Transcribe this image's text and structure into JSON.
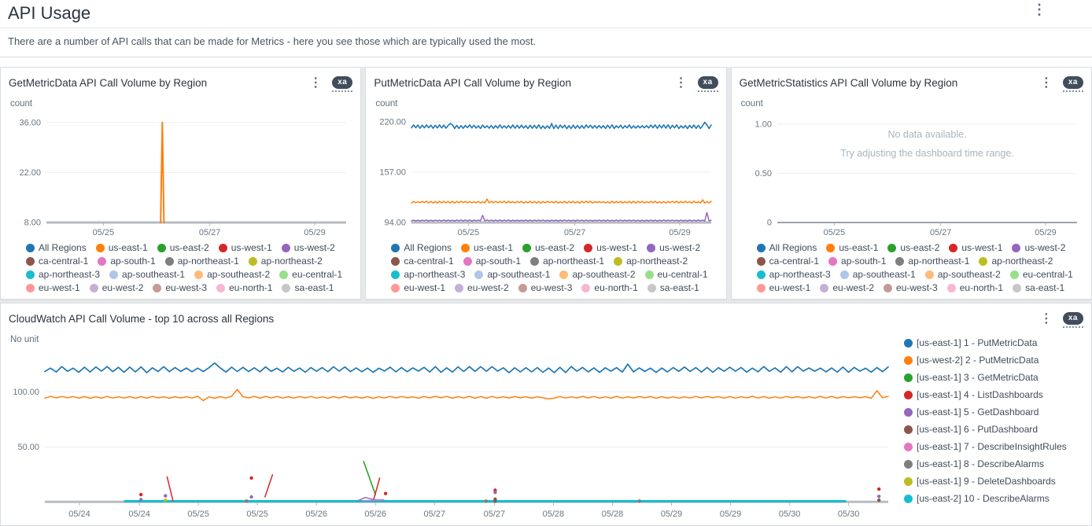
{
  "page": {
    "title": "API Usage",
    "description": "There are a number of API calls that can be made for Metrics - here you see those which are typically used the most."
  },
  "icons": {
    "kebab_menu": "⋮"
  },
  "badges": {
    "xa": "xa"
  },
  "region_legend": [
    {
      "label": "All Regions",
      "color": "#1f77b4"
    },
    {
      "label": "us-east-1",
      "color": "#ff7f0e"
    },
    {
      "label": "us-east-2",
      "color": "#2ca02c"
    },
    {
      "label": "us-west-1",
      "color": "#d62728"
    },
    {
      "label": "us-west-2",
      "color": "#9467bd"
    },
    {
      "label": "ca-central-1",
      "color": "#8c564b"
    },
    {
      "label": "ap-south-1",
      "color": "#e377c2"
    },
    {
      "label": "ap-northeast-1",
      "color": "#7f7f7f"
    },
    {
      "label": "ap-northeast-2",
      "color": "#bcbd22"
    },
    {
      "label": "ap-northeast-3",
      "color": "#17becf"
    },
    {
      "label": "ap-southeast-1",
      "color": "#aec7e8"
    },
    {
      "label": "ap-southeast-2",
      "color": "#ffbb78"
    },
    {
      "label": "eu-central-1",
      "color": "#98df8a"
    },
    {
      "label": "eu-west-1",
      "color": "#ff9896"
    },
    {
      "label": "eu-west-2",
      "color": "#c5b0d5"
    },
    {
      "label": "eu-west-3",
      "color": "#c49c94"
    },
    {
      "label": "eu-north-1",
      "color": "#f7b6d2"
    },
    {
      "label": "sa-east-1",
      "color": "#c7c7c7"
    }
  ],
  "top10_legend": [
    {
      "label": "[us-east-1] 1 - PutMetricData",
      "color": "#1f77b4"
    },
    {
      "label": "[us-west-2] 2 - PutMetricData",
      "color": "#ff7f0e"
    },
    {
      "label": "[us-east-1] 3 - GetMetricData",
      "color": "#2ca02c"
    },
    {
      "label": "[us-east-1] 4 - ListDashboards",
      "color": "#d62728"
    },
    {
      "label": "[us-east-1] 5 - GetDashboard",
      "color": "#9467bd"
    },
    {
      "label": "[us-east-1] 6 - PutDashboard",
      "color": "#8c564b"
    },
    {
      "label": "[us-east-1] 7 - DescribeInsightRules",
      "color": "#e377c2"
    },
    {
      "label": "[us-east-1] 8 - DescribeAlarms",
      "color": "#7f7f7f"
    },
    {
      "label": "[us-east-1] 9 - DeleteDashboards",
      "color": "#bcbd22"
    },
    {
      "label": "[us-east-2] 10 - DescribeAlarms",
      "color": "#17becf"
    }
  ],
  "chart_data": [
    {
      "type": "line",
      "title": "GetMetricData API Call Volume by Region",
      "unit": "count",
      "ylim": [
        8,
        37.5
      ],
      "yticks": [
        {
          "v": 36,
          "label": "36.00"
        },
        {
          "v": 22,
          "label": "22.00"
        },
        {
          "v": 8,
          "label": "8.00"
        }
      ],
      "xticks": [
        {
          "f": 0.19,
          "label": "05/25"
        },
        {
          "f": 0.545,
          "label": "05/27"
        },
        {
          "f": 0.895,
          "label": "05/29"
        }
      ],
      "baseline": {
        "v": 8,
        "width": 3,
        "color": "#b7bcc2"
      },
      "series": [
        {
          "name": "us-east-1",
          "color": "#ff7f0e",
          "width": 2,
          "points": [
            [
              0.381,
              8
            ],
            [
              0.3865,
              36
            ],
            [
              0.392,
              8
            ]
          ]
        }
      ],
      "legend_position": "bottom"
    },
    {
      "type": "line",
      "title": "PutMetricData API Call Volume by Region",
      "unit": "count",
      "ylim": [
        94,
        226
      ],
      "yticks": [
        {
          "v": 220,
          "label": "220.00"
        },
        {
          "v": 157,
          "label": "157.00"
        },
        {
          "v": 94,
          "label": "94.00"
        }
      ],
      "xticks": [
        {
          "f": 0.19,
          "label": "05/25"
        },
        {
          "f": 0.545,
          "label": "05/27"
        },
        {
          "f": 0.895,
          "label": "05/29"
        }
      ],
      "baseline": {
        "v": 94,
        "width": 3,
        "color": "#b7bcc2"
      },
      "series": [
        {
          "name": "All Regions",
          "color": "#1f77b4",
          "width": 1.6,
          "zigzag": {
            "base": 214,
            "amp": 2.4,
            "n": 140,
            "seed": 9,
            "bumps": [
              [
                0.13,
                218
              ],
              [
                0.47,
                218
              ],
              [
                0.98,
                219.5
              ]
            ]
          }
        },
        {
          "name": "us-east-1",
          "color": "#ff7f0e",
          "width": 1.5,
          "zigzag": {
            "base": 119.5,
            "amp": 1.2,
            "n": 140,
            "seed": 4,
            "bumps": [
              [
                0.25,
                123.5
              ],
              [
                0.97,
                122.5
              ]
            ]
          }
        },
        {
          "name": "us-west-2",
          "color": "#9467bd",
          "width": 1.5,
          "zigzag": {
            "base": 96.5,
            "amp": 0.7,
            "n": 140,
            "seed": 6,
            "bumps": [
              [
                0.24,
                103
              ],
              [
                0.988,
                106.5
              ]
            ]
          }
        }
      ],
      "legend_position": "bottom"
    },
    {
      "type": "line",
      "title": "GetMetricStatistics API Call Volume by Region",
      "unit": "count",
      "ylim": [
        0,
        1.07
      ],
      "yticks": [
        {
          "v": 1,
          "label": "1.00"
        },
        {
          "v": 0.5,
          "label": "0.50"
        },
        {
          "v": 0,
          "label": "0"
        }
      ],
      "xticks": [
        {
          "f": 0.19,
          "label": "05/25"
        },
        {
          "f": 0.545,
          "label": "05/27"
        },
        {
          "f": 0.895,
          "label": "05/29"
        }
      ],
      "baseline": {
        "v": 0,
        "width": 2,
        "color": "#9aa2ab"
      },
      "no_data": {
        "line1": "No data available.",
        "line2": "Try adjusting the dashboard time range."
      },
      "series": [],
      "legend_position": "bottom"
    },
    {
      "type": "line",
      "title": "CloudWatch API Call Volume - top 10 across all Regions",
      "unit": "No unit",
      "ylim": [
        0,
        135
      ],
      "yticks": [
        {
          "v": 100,
          "label": "100.00"
        },
        {
          "v": 50,
          "label": "50.00"
        }
      ],
      "xticks": [
        {
          "f": 0.041,
          "label": "05/24"
        },
        {
          "f": 0.112,
          "label": "05/24"
        },
        {
          "f": 0.182,
          "label": "05/25"
        },
        {
          "f": 0.252,
          "label": "05/25"
        },
        {
          "f": 0.322,
          "label": "05/26"
        },
        {
          "f": 0.392,
          "label": "05/26"
        },
        {
          "f": 0.462,
          "label": "05/27"
        },
        {
          "f": 0.533,
          "label": "05/27"
        },
        {
          "f": 0.603,
          "label": "05/28"
        },
        {
          "f": 0.673,
          "label": "05/28"
        },
        {
          "f": 0.743,
          "label": "05/29"
        },
        {
          "f": 0.813,
          "label": "05/29"
        },
        {
          "f": 0.883,
          "label": "05/30"
        },
        {
          "f": 0.953,
          "label": "05/30"
        }
      ],
      "baseline": {
        "v": 0.6,
        "width": 3,
        "color": "#b7bcc2"
      },
      "series": [
        {
          "name": "[us-east-2] 10 - DescribeAlarms",
          "color": "#17becf",
          "width": 3,
          "points": [
            [
              0.095,
              1.1
            ],
            [
              0.949,
              1.1
            ]
          ]
        },
        {
          "name": "[us-west-2] 2 - PutMetricData",
          "color": "#ff7f0e",
          "width": 1.5,
          "zigzag": {
            "base": 95,
            "amp": 0.9,
            "n": 150,
            "seed": 5,
            "bumps": [
              [
                0.19,
                92
              ],
              [
                0.227,
                102
              ],
              [
                0.6,
                93.5
              ],
              [
                0.985,
                101
              ]
            ]
          }
        },
        {
          "name": "[us-east-1] 1 - PutMetricData",
          "color": "#1f77b4",
          "width": 1.7,
          "zigzag": {
            "base": 120,
            "amp": 2.8,
            "n": 150,
            "seed": 12,
            "bumps": [
              [
                0.2,
                126
              ],
              [
                0.69,
                125
              ]
            ]
          }
        },
        {
          "name": "[us-east-1] 5 - GetDashboard",
          "color": "#9467bd",
          "width": 1.4,
          "points": [
            [
              0.37,
              1.2
            ],
            [
              0.38,
              4.5
            ],
            [
              0.39,
              2.5
            ],
            [
              0.402,
              2
            ]
          ]
        },
        {
          "name": "[us-east-1] 7 - DescribeInsightRules",
          "color": "#e377c2",
          "width": 1.4,
          "points": [
            [
              0.378,
              1.6
            ],
            [
              0.402,
              2.4
            ]
          ]
        },
        {
          "name": "[us-east-1] 3 - GetMetricData",
          "color": "#2ca02c",
          "width": 1.6,
          "points": [
            [
              0.378,
              37
            ],
            [
              0.392,
              7
            ]
          ]
        },
        {
          "name": "[us-east-1] 4 - ListDashboards",
          "color": "#d62728",
          "width": 1.5,
          "points": [
            [
              0.145,
              23
            ],
            [
              0.152,
              1.5
            ]
          ]
        },
        {
          "name": "[us-east-1] 4 - ListDashboards",
          "color": "#d62728",
          "width": 1.5,
          "points": [
            [
              0.261,
              5
            ],
            [
              0.27,
              25
            ]
          ]
        },
        {
          "name": "[us-east-1] 4 - ListDashboards",
          "color": "#d62728",
          "width": 1.5,
          "points": [
            [
              0.39,
              3
            ],
            [
              0.397,
              22
            ]
          ]
        }
      ],
      "dots": [
        {
          "color": "#d62728",
          "f": 0.114,
          "v": 7
        },
        {
          "color": "#9467bd",
          "f": 0.114,
          "v": 2.5
        },
        {
          "color": "#9467bd",
          "f": 0.143,
          "v": 6
        },
        {
          "color": "#bcbd22",
          "f": 0.143,
          "v": 2
        },
        {
          "color": "#d62728",
          "f": 0.245,
          "v": 22
        },
        {
          "color": "#9467bd",
          "f": 0.245,
          "v": 5
        },
        {
          "color": "#7f7f7f",
          "f": 0.239,
          "v": 1.2
        },
        {
          "color": "#d62728",
          "f": 0.404,
          "v": 8
        },
        {
          "color": "#d62728",
          "f": 0.534,
          "v": 11
        },
        {
          "color": "#9467bd",
          "f": 0.534,
          "v": 9
        },
        {
          "color": "#8c564b",
          "f": 0.534,
          "v": 3
        },
        {
          "color": "#8c564b",
          "f": 0.534,
          "v": 1.2
        },
        {
          "color": "#7f7f7f",
          "f": 0.523,
          "v": 1.2
        },
        {
          "color": "#7f7f7f",
          "f": 0.705,
          "v": 1.2
        },
        {
          "color": "#d62728",
          "f": 0.989,
          "v": 12
        },
        {
          "color": "#9467bd",
          "f": 0.989,
          "v": 5.5
        },
        {
          "color": "#8c564b",
          "f": 0.989,
          "v": 2
        }
      ],
      "legend_position": "right"
    }
  ]
}
